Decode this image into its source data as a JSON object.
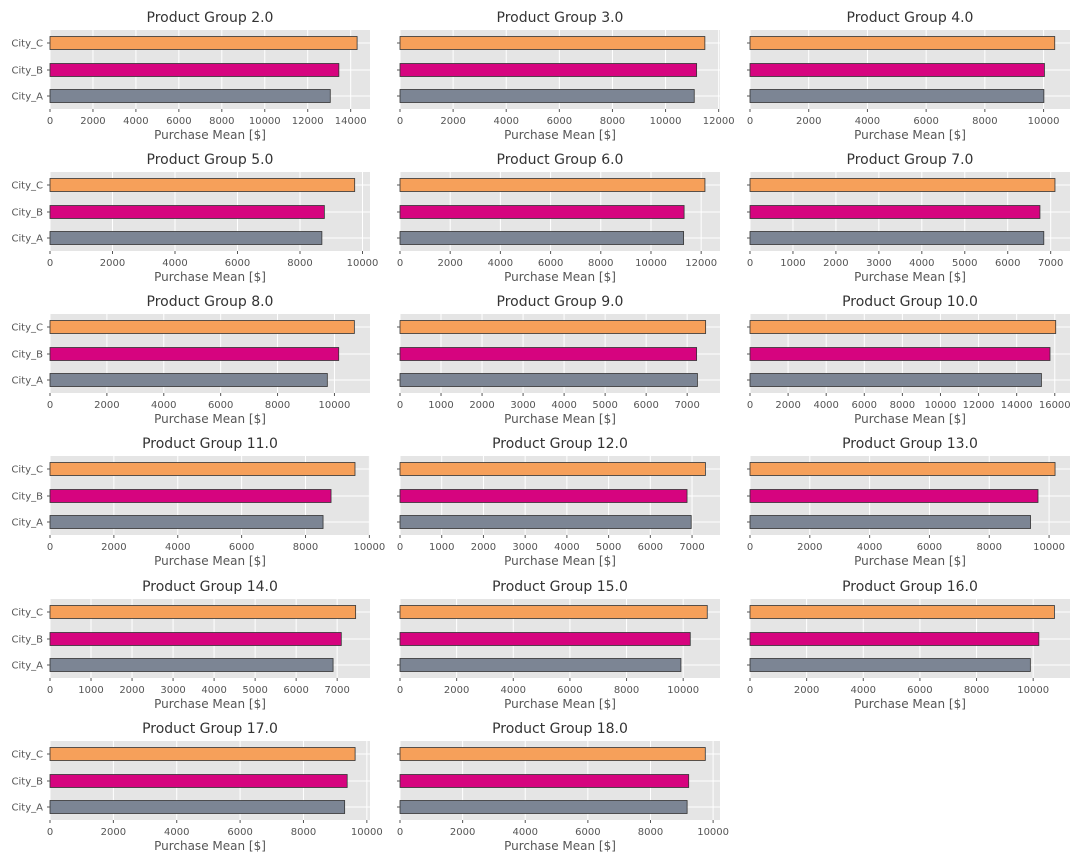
{
  "colors": {
    "City_A": "#7c8594",
    "City_B": "#d6047f",
    "City_C": "#f6a05a",
    "panel_bg": "#e5e5e5",
    "grid": "#ffffff",
    "edge": "#333333"
  },
  "chart_data": [
    {
      "type": "bar",
      "orientation": "horizontal",
      "title": "Product Group 2.0",
      "xlabel": "Purchase Mean [$]",
      "ylabel": "",
      "categories": [
        "City_A",
        "City_B",
        "City_C"
      ],
      "values": [
        13050,
        13450,
        14300
      ],
      "xlim": [
        0,
        14900
      ],
      "xticks": [
        0,
        2000,
        4000,
        6000,
        8000,
        10000,
        12000,
        14000
      ]
    },
    {
      "type": "bar",
      "orientation": "horizontal",
      "title": "Product Group 3.0",
      "xlabel": "Purchase Mean [$]",
      "ylabel": "",
      "categories": [
        "City_A",
        "City_B",
        "City_C"
      ],
      "values": [
        11080,
        11170,
        11480
      ],
      "xlim": [
        0,
        12050
      ],
      "xticks": [
        0,
        2000,
        4000,
        6000,
        8000,
        10000,
        12000
      ]
    },
    {
      "type": "bar",
      "orientation": "horizontal",
      "title": "Product Group 4.0",
      "xlabel": "Purchase Mean [$]",
      "ylabel": "",
      "categories": [
        "City_A",
        "City_B",
        "City_C"
      ],
      "values": [
        10010,
        10030,
        10380
      ],
      "xlim": [
        0,
        10900
      ],
      "xticks": [
        0,
        2000,
        4000,
        6000,
        8000,
        10000
      ]
    },
    {
      "type": "bar",
      "orientation": "horizontal",
      "title": "Product Group 5.0",
      "xlabel": "Purchase Mean [$]",
      "ylabel": "",
      "categories": [
        "City_A",
        "City_B",
        "City_C"
      ],
      "values": [
        8700,
        8780,
        9750
      ],
      "xlim": [
        0,
        10240
      ],
      "xticks": [
        0,
        2000,
        4000,
        6000,
        8000,
        10000
      ]
    },
    {
      "type": "bar",
      "orientation": "horizontal",
      "title": "Product Group 6.0",
      "xlabel": "Purchase Mean [$]",
      "ylabel": "",
      "categories": [
        "City_A",
        "City_B",
        "City_C"
      ],
      "values": [
        11300,
        11320,
        12150
      ],
      "xlim": [
        0,
        12750
      ],
      "xticks": [
        0,
        2000,
        4000,
        6000,
        8000,
        10000,
        12000
      ]
    },
    {
      "type": "bar",
      "orientation": "horizontal",
      "title": "Product Group 7.0",
      "xlabel": "Purchase Mean [$]",
      "ylabel": "",
      "categories": [
        "City_A",
        "City_B",
        "City_C"
      ],
      "values": [
        6840,
        6750,
        7100
      ],
      "xlim": [
        0,
        7450
      ],
      "xticks": [
        0,
        1000,
        2000,
        3000,
        4000,
        5000,
        6000,
        7000
      ]
    },
    {
      "type": "bar",
      "orientation": "horizontal",
      "title": "Product Group 8.0",
      "xlabel": "Purchase Mean [$]",
      "ylabel": "",
      "categories": [
        "City_A",
        "City_B",
        "City_C"
      ],
      "values": [
        9750,
        10150,
        10700
      ],
      "xlim": [
        0,
        11250
      ],
      "xticks": [
        0,
        2000,
        4000,
        6000,
        8000,
        10000
      ]
    },
    {
      "type": "bar",
      "orientation": "horizontal",
      "title": "Product Group 9.0",
      "xlabel": "Purchase Mean [$]",
      "ylabel": "",
      "categories": [
        "City_A",
        "City_B",
        "City_C"
      ],
      "values": [
        7250,
        7230,
        7450
      ],
      "xlim": [
        0,
        7800
      ],
      "xticks": [
        0,
        1000,
        2000,
        3000,
        4000,
        5000,
        6000,
        7000
      ]
    },
    {
      "type": "bar",
      "orientation": "horizontal",
      "title": "Product Group 10.0",
      "xlabel": "Purchase Mean [$]",
      "ylabel": "",
      "categories": [
        "City_A",
        "City_B",
        "City_C"
      ],
      "values": [
        15300,
        15750,
        16050
      ],
      "xlim": [
        0,
        16800
      ],
      "xticks": [
        0,
        2000,
        4000,
        6000,
        8000,
        10000,
        12000,
        14000,
        16000
      ]
    },
    {
      "type": "bar",
      "orientation": "horizontal",
      "title": "Product Group 11.0",
      "xlabel": "Purchase Mean [$]",
      "ylabel": "",
      "categories": [
        "City_A",
        "City_B",
        "City_C"
      ],
      "values": [
        8550,
        8800,
        9550
      ],
      "xlim": [
        0,
        10020
      ],
      "xticks": [
        0,
        2000,
        4000,
        6000,
        8000,
        10000
      ]
    },
    {
      "type": "bar",
      "orientation": "horizontal",
      "title": "Product Group 12.0",
      "xlabel": "Purchase Mean [$]",
      "ylabel": "",
      "categories": [
        "City_A",
        "City_B",
        "City_C"
      ],
      "values": [
        6980,
        6880,
        7320
      ],
      "xlim": [
        0,
        7670
      ],
      "xticks": [
        0,
        1000,
        2000,
        3000,
        4000,
        5000,
        6000,
        7000
      ]
    },
    {
      "type": "bar",
      "orientation": "horizontal",
      "title": "Product Group 13.0",
      "xlabel": "Purchase Mean [$]",
      "ylabel": "",
      "categories": [
        "City_A",
        "City_B",
        "City_C"
      ],
      "values": [
        9380,
        9630,
        10200
      ],
      "xlim": [
        0,
        10700
      ],
      "xticks": [
        0,
        2000,
        4000,
        6000,
        8000,
        10000
      ]
    },
    {
      "type": "bar",
      "orientation": "horizontal",
      "title": "Product Group 14.0",
      "xlabel": "Purchase Mean [$]",
      "ylabel": "",
      "categories": [
        "City_A",
        "City_B",
        "City_C"
      ],
      "values": [
        6900,
        7100,
        7450
      ],
      "xlim": [
        0,
        7800
      ],
      "xticks": [
        0,
        1000,
        2000,
        3000,
        4000,
        5000,
        6000,
        7000
      ]
    },
    {
      "type": "bar",
      "orientation": "horizontal",
      "title": "Product Group 15.0",
      "xlabel": "Purchase Mean [$]",
      "ylabel": "",
      "categories": [
        "City_A",
        "City_B",
        "City_C"
      ],
      "values": [
        9920,
        10250,
        10850
      ],
      "xlim": [
        0,
        11300
      ],
      "xticks": [
        0,
        2000,
        4000,
        6000,
        8000,
        10000
      ]
    },
    {
      "type": "bar",
      "orientation": "horizontal",
      "title": "Product Group 16.0",
      "xlabel": "Purchase Mean [$]",
      "ylabel": "",
      "categories": [
        "City_A",
        "City_B",
        "City_C"
      ],
      "values": [
        9900,
        10200,
        10750
      ],
      "xlim": [
        0,
        11300
      ],
      "xticks": [
        0,
        2000,
        4000,
        6000,
        8000,
        10000
      ]
    },
    {
      "type": "bar",
      "orientation": "horizontal",
      "title": "Product Group 17.0",
      "xlabel": "Purchase Mean [$]",
      "ylabel": "",
      "categories": [
        "City_A",
        "City_B",
        "City_C"
      ],
      "values": [
        9300,
        9380,
        9630
      ],
      "xlim": [
        0,
        10100
      ],
      "xticks": [
        0,
        2000,
        4000,
        6000,
        8000,
        10000
      ]
    },
    {
      "type": "bar",
      "orientation": "horizontal",
      "title": "Product Group 18.0",
      "xlabel": "Purchase Mean [$]",
      "ylabel": "",
      "categories": [
        "City_A",
        "City_B",
        "City_C"
      ],
      "values": [
        9170,
        9220,
        9750
      ],
      "xlim": [
        0,
        10220
      ],
      "xticks": [
        0,
        2000,
        4000,
        6000,
        8000,
        10000
      ]
    }
  ]
}
